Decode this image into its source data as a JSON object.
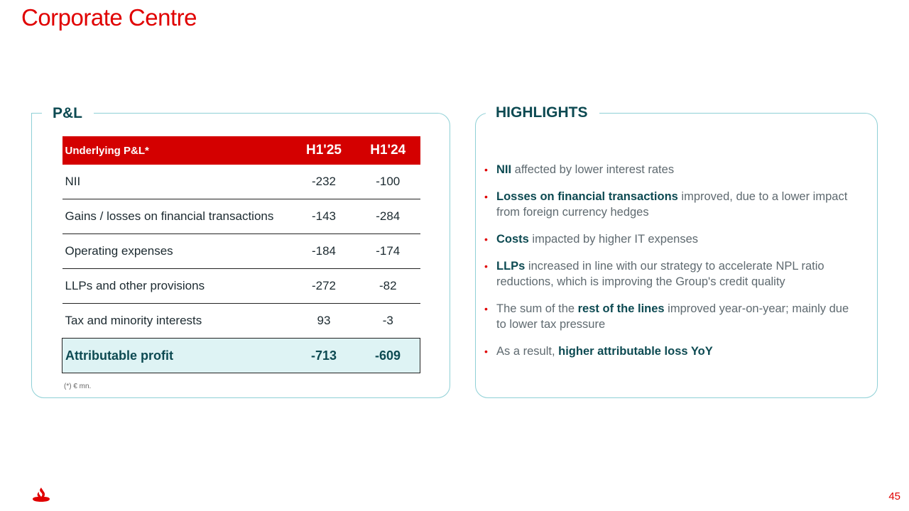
{
  "title": "Corporate Centre",
  "page_number": "45",
  "brand_color": "#e00000",
  "logo_icon": "santander-flame-icon",
  "pl_panel": {
    "title": "P&L",
    "header": {
      "label": "Underlying P&L*",
      "col1": "H1'25",
      "col2": "H1'24"
    },
    "rows": [
      {
        "label": "NII",
        "h125": "-232",
        "h124": "-100"
      },
      {
        "label": "Gains / losses on financial transactions",
        "h125": "-143",
        "h124": "-284"
      },
      {
        "label": "Operating expenses",
        "h125": "-184",
        "h124": "-174"
      },
      {
        "label": "LLPs and other provisions",
        "h125": "-272",
        "h124": "-82"
      },
      {
        "label": "Tax and minority interests",
        "h125": "93",
        "h124": "-3"
      }
    ],
    "total": {
      "label": "Attributable profit",
      "h125": "-713",
      "h124": "-609"
    },
    "footnote": "(*) € mn."
  },
  "highlights_panel": {
    "title": "HIGHLIGHTS",
    "items": [
      {
        "pre": "",
        "strong": "NII",
        "post": " affected by lower interest rates"
      },
      {
        "pre": "",
        "strong": "Losses on financial transactions",
        "post": " improved, due to a lower impact from foreign currency hedges"
      },
      {
        "pre": "",
        "strong": "Costs",
        "post": " impacted by higher IT expenses"
      },
      {
        "pre": "",
        "strong": "LLPs",
        "post": " increased in line with our strategy to accelerate NPL ratio reductions, which is improving the Group's credit quality"
      },
      {
        "pre": "The sum of the ",
        "strong": "rest of the lines",
        "post": " improved year-on-year; mainly due to lower tax pressure"
      },
      {
        "pre": "As a result, ",
        "strong": "higher attributable loss YoY",
        "post": ""
      }
    ]
  }
}
